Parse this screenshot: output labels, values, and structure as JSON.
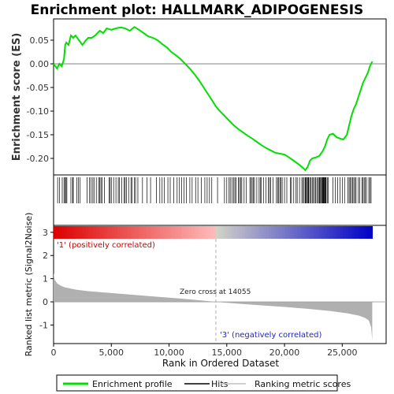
{
  "chart_data": [
    {
      "type": "line",
      "title": "Enrichment plot: HALLMARK_ADIPOGENESIS",
      "ylabel": "Enrichment score (ES)",
      "ylim": [
        -0.235,
        0.095
      ],
      "yticks": [
        "0.05",
        "0.00",
        "-0.05",
        "-0.10",
        "-0.15",
        "-0.20"
      ],
      "ytick_values": [
        0.05,
        0.0,
        -0.05,
        -0.1,
        -0.15,
        -0.2
      ],
      "series": [
        {
          "name": "Enrichment profile",
          "color": "#00e000",
          "x": [
            0,
            300,
            500,
            700,
            900,
            1000,
            1100,
            1300,
            1500,
            1700,
            1900,
            2200,
            2500,
            2800,
            3000,
            3300,
            3600,
            4000,
            4300,
            4600,
            5000,
            5400,
            5800,
            6200,
            6600,
            7000,
            7400,
            7800,
            8200,
            8600,
            9000,
            9400,
            9800,
            10200,
            10600,
            11000,
            11400,
            11800,
            12200,
            12600,
            13000,
            13400,
            13800,
            14055,
            14400,
            14800,
            15200,
            15600,
            16000,
            16400,
            16800,
            17200,
            17600,
            18000,
            18400,
            18800,
            19200,
            19600,
            20000,
            20400,
            20800,
            21200,
            21600,
            21800,
            22000,
            22200,
            22400,
            22700,
            23000,
            23300,
            23500,
            23700,
            23900,
            24200,
            24500,
            24800,
            25100,
            25400,
            25600,
            25800,
            26000,
            26200,
            26400,
            26600,
            26800,
            27000,
            27200,
            27400,
            27600
          ],
          "y": [
            0.0,
            -0.01,
            0.0,
            -0.005,
            0.01,
            0.04,
            0.045,
            0.04,
            0.06,
            0.055,
            0.06,
            0.05,
            0.04,
            0.05,
            0.055,
            0.055,
            0.06,
            0.07,
            0.065,
            0.075,
            0.072,
            0.075,
            0.077,
            0.075,
            0.07,
            0.078,
            0.072,
            0.065,
            0.058,
            0.055,
            0.05,
            0.042,
            0.035,
            0.025,
            0.018,
            0.01,
            0.0,
            -0.01,
            -0.022,
            -0.035,
            -0.05,
            -0.065,
            -0.08,
            -0.09,
            -0.1,
            -0.11,
            -0.12,
            -0.13,
            -0.138,
            -0.145,
            -0.152,
            -0.158,
            -0.165,
            -0.172,
            -0.178,
            -0.183,
            -0.188,
            -0.19,
            -0.192,
            -0.198,
            -0.205,
            -0.212,
            -0.22,
            -0.225,
            -0.218,
            -0.205,
            -0.2,
            -0.198,
            -0.195,
            -0.185,
            -0.175,
            -0.16,
            -0.15,
            -0.148,
            -0.155,
            -0.158,
            -0.16,
            -0.15,
            -0.13,
            -0.11,
            -0.095,
            -0.085,
            -0.07,
            -0.055,
            -0.04,
            -0.03,
            -0.02,
            -0.005,
            0.005
          ]
        }
      ],
      "grid": false,
      "zero_line": true
    },
    {
      "type": "area",
      "ylabel": "Ranked list metric (Signal2Noise)",
      "xlabel": "Rank in Ordered Dataset",
      "xlim": [
        0,
        28800
      ],
      "ylim": [
        -1.8,
        3.3
      ],
      "xticks": [
        "0",
        "5,000",
        "10,000",
        "15,000",
        "20,000",
        "25,000"
      ],
      "xtick_values": [
        0,
        5000,
        10000,
        15000,
        20000,
        25000
      ],
      "yticks": [
        "3",
        "2",
        "1",
        "0",
        "-1"
      ],
      "ytick_values": [
        3,
        2,
        1,
        0,
        -1
      ],
      "series": [
        {
          "name": "Ranking metric scores",
          "color": "#b0b0b0",
          "x": [
            0,
            100,
            300,
            600,
            1000,
            2000,
            3000,
            5000,
            7000,
            9000,
            11000,
            13000,
            14055,
            16000,
            18000,
            20000,
            22000,
            24000,
            25500,
            26500,
            27000,
            27300,
            27500,
            27600
          ],
          "y": [
            1.25,
            0.95,
            0.8,
            0.7,
            0.62,
            0.52,
            0.46,
            0.38,
            0.3,
            0.22,
            0.14,
            0.05,
            0.0,
            -0.08,
            -0.15,
            -0.22,
            -0.3,
            -0.4,
            -0.5,
            -0.6,
            -0.7,
            -0.8,
            -1.1,
            -1.65
          ]
        }
      ],
      "annotations": {
        "zero_cross": "Zero cross at 14055",
        "zero_cross_x": 14055,
        "positive_label": "'1' (positively correlated)",
        "negative_label": "'3' (negatively correlated)"
      },
      "colors": {
        "positive": "#dd0000",
        "negative": "#0000cc"
      }
    }
  ],
  "hits": {
    "name": "Hits",
    "ranks": [
      350,
      500,
      750,
      900,
      1000,
      1080,
      1150,
      1500,
      1650,
      1700,
      2000,
      2150,
      2300,
      2900,
      3100,
      3250,
      3400,
      3500,
      3700,
      3900,
      4000,
      4100,
      4200,
      4400,
      4800,
      4900,
      5000,
      5200,
      5400,
      5600,
      5700,
      5900,
      6100,
      6200,
      6300,
      6500,
      6700,
      6800,
      7000,
      7100,
      7300,
      7700,
      8100,
      8400,
      8900,
      9200,
      9400,
      9600,
      9900,
      10100,
      10400,
      10700,
      10900,
      11100,
      11300,
      11500,
      11800,
      12000,
      12300,
      12500,
      12800,
      13100,
      13300,
      13500,
      13700,
      14200,
      14800,
      15000,
      15200,
      15300,
      15450,
      15600,
      15700,
      15800,
      16000,
      16100,
      16200,
      16300,
      16500,
      16700,
      17000,
      17100,
      17200,
      17300,
      17400,
      17600,
      17800,
      17900,
      18000,
      18200,
      18400,
      18600,
      18700,
      18800,
      19000,
      19300,
      19400,
      19500,
      19600,
      19700,
      19800,
      20000,
      20200,
      20500,
      20600,
      20800,
      21000,
      21100,
      21300,
      21500,
      21600,
      21700,
      21800,
      21850,
      21900,
      22000,
      22050,
      22100,
      22200,
      22300,
      22400,
      22500,
      22600,
      22700,
      22800,
      22900,
      23000,
      23050,
      23100,
      23200,
      23250,
      23300,
      23350,
      23400,
      23450,
      23500,
      23550,
      23600,
      23700,
      23800,
      24200,
      24400,
      24600,
      24800,
      25000,
      25200,
      25500,
      25600,
      25700,
      25800,
      25900,
      26000,
      26100,
      26200,
      26400,
      26500,
      26700,
      26800,
      26900,
      27000,
      27100,
      27300,
      27400,
      27500
    ]
  },
  "legend": {
    "items": [
      {
        "label": "Enrichment profile",
        "color": "#00e000"
      },
      {
        "label": "Hits",
        "color": "#000000"
      },
      {
        "label": "Ranking metric scores",
        "color": "#c0c0c0"
      }
    ]
  }
}
